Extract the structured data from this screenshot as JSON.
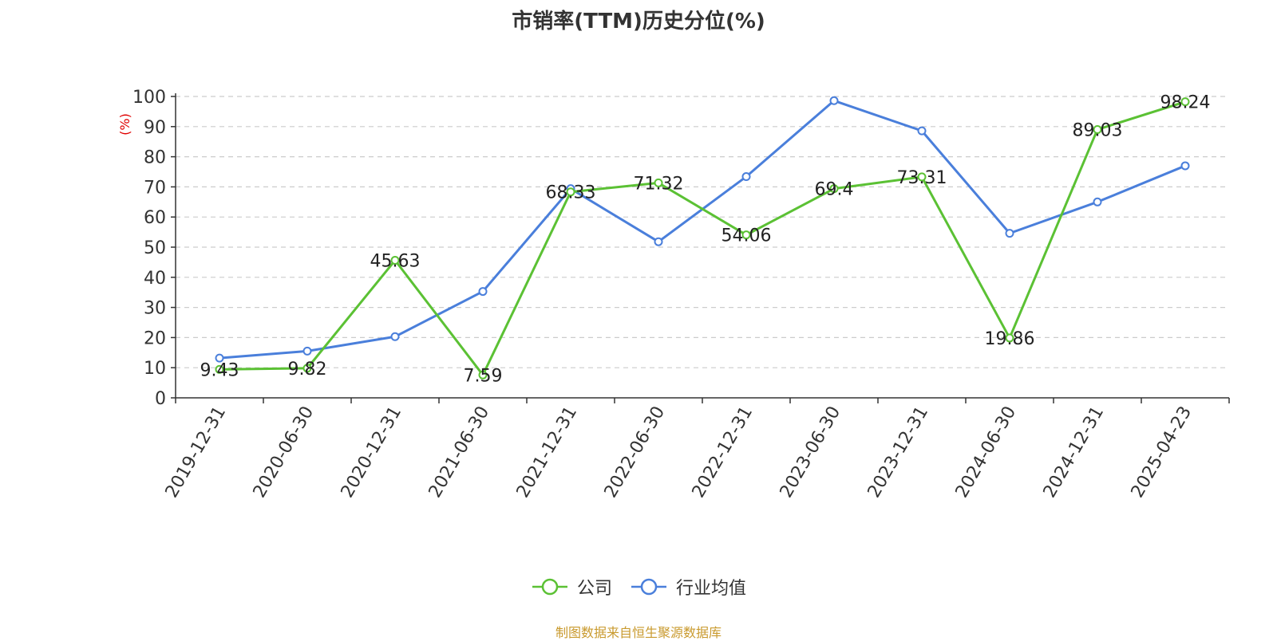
{
  "title": "市销率(TTM)历史分位(%)",
  "source": "制图数据来自恒生聚源数据库",
  "colors": {
    "company": "#5bc134",
    "industry": "#4a7fdb",
    "ylabel": "#e00000",
    "axis": "#333333",
    "grid": "#cccccc",
    "source": "#c99a2e"
  },
  "chart_data": {
    "type": "line",
    "title": "市销率(TTM)历史分位(%)",
    "ylabel": "(%)",
    "xlabel": "",
    "ylim": [
      0,
      100
    ],
    "yticks": [
      0,
      10,
      20,
      30,
      40,
      50,
      60,
      70,
      80,
      90,
      100
    ],
    "grid": true,
    "legend_position": "bottom-center",
    "categories": [
      "2019-12-31",
      "2020-06-30",
      "2020-12-31",
      "2021-06-30",
      "2021-12-31",
      "2022-06-30",
      "2022-12-31",
      "2023-06-30",
      "2023-12-31",
      "2024-06-30",
      "2024-12-31",
      "2025-04-23"
    ],
    "series": [
      {
        "name": "公司",
        "color": "#5bc134",
        "show_labels": true,
        "values": [
          9.43,
          9.82,
          45.63,
          7.59,
          68.33,
          71.32,
          54.06,
          69.4,
          73.31,
          19.86,
          89.03,
          98.24
        ],
        "labels": [
          "9.43",
          "9.82",
          "45.63",
          "7.59",
          "68.33",
          "71.32",
          "54.06",
          "69.4",
          "73.31",
          "19.86",
          "89.03",
          "98.24"
        ]
      },
      {
        "name": "行业均值",
        "color": "#4a7fdb",
        "show_labels": false,
        "values": [
          13.2,
          15.5,
          20.3,
          35.3,
          69.4,
          51.8,
          73.4,
          98.6,
          88.6,
          54.6,
          65.0,
          77.0
        ]
      }
    ]
  }
}
